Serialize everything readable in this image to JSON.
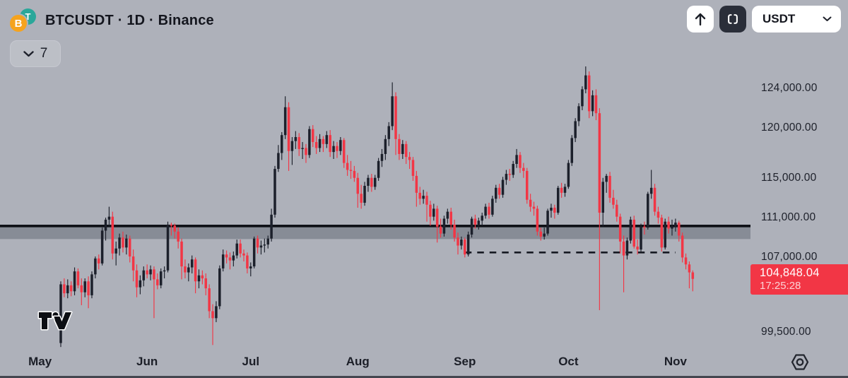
{
  "header": {
    "symbol_title": "BTCUSDT · 1D · Binance",
    "base_coin_letter": "B",
    "quote_coin_letter": "T",
    "legend_collapsed_count": "7"
  },
  "toolbar": {
    "quote_currency": "USDT"
  },
  "price_axis": {
    "ticks": [
      {
        "value": 124000,
        "label": "124,000.00"
      },
      {
        "value": 120000,
        "label": "120,000.00"
      },
      {
        "value": 115000,
        "label": "115,000.00"
      },
      {
        "value": 111000,
        "label": "111,000.00"
      },
      {
        "value": 107000,
        "label": "107,000.00"
      },
      {
        "value": 99500,
        "label": "99,500.00"
      }
    ],
    "last_price": {
      "value": 104848.04,
      "label": "104,848.04",
      "countdown": "17:25:28",
      "color": "#f23645"
    }
  },
  "x_axis": {
    "months": [
      {
        "label": "May",
        "day_index": -6
      },
      {
        "label": "Jun",
        "day_index": 25
      },
      {
        "label": "Jul",
        "day_index": 55
      },
      {
        "label": "Aug",
        "day_index": 86
      },
      {
        "label": "Sep",
        "day_index": 117
      },
      {
        "label": "Oct",
        "day_index": 147
      },
      {
        "label": "Nov",
        "day_index": 178
      }
    ]
  },
  "chart_data": {
    "type": "candlestick",
    "symbol": "BTCUSDT",
    "interval": "1D",
    "exchange": "Binance",
    "title": "BTCUSDT · 1D · Binance",
    "ylim": [
      94900,
      132900
    ],
    "grid": false,
    "up_color": "#1c202b",
    "down_color": "#f23645",
    "zone": {
      "top": 110150,
      "bottom": 108850,
      "line_color": "#0d0f15",
      "fill_color": "rgba(82,87,99,0.42)"
    },
    "dashed_line": {
      "price": 107500,
      "start_day": 117,
      "end_day": 178,
      "color": "#161922"
    },
    "last_price_line_value": 104848.04,
    "candles_format": [
      "open",
      "high",
      "low",
      "close"
    ],
    "candles": [
      [
        98400,
        104600,
        98000,
        104300
      ],
      [
        104300,
        104900,
        103000,
        103400
      ],
      [
        103400,
        104800,
        102900,
        104200
      ],
      [
        104200,
        104600,
        103100,
        103600
      ],
      [
        103600,
        106000,
        103200,
        105600
      ],
      [
        105600,
        105900,
        103900,
        104200
      ],
      [
        104200,
        104900,
        102200,
        103500
      ],
      [
        103500,
        104900,
        103000,
        104600
      ],
      [
        104600,
        105100,
        101900,
        103200
      ],
      [
        103200,
        105600,
        102900,
        105300
      ],
      [
        105300,
        107100,
        104900,
        106900
      ],
      [
        106900,
        107300,
        105800,
        106400
      ],
      [
        106400,
        110000,
        106200,
        109700
      ],
      [
        109700,
        111000,
        108700,
        110800
      ],
      [
        110800,
        112100,
        110100,
        111100
      ],
      [
        111100,
        111600,
        106800,
        107400
      ],
      [
        107400,
        108600,
        106200,
        107900
      ],
      [
        107900,
        109400,
        107200,
        109000
      ],
      [
        109000,
        109600,
        107500,
        108000
      ],
      [
        108000,
        109300,
        107300,
        108900
      ],
      [
        108900,
        109200,
        106500,
        107100
      ],
      [
        107100,
        107800,
        104600,
        105700
      ],
      [
        105700,
        106300,
        103000,
        104000
      ],
      [
        104000,
        105200,
        103300,
        104700
      ],
      [
        104700,
        106100,
        104100,
        105700
      ],
      [
        105700,
        106300,
        104900,
        105300
      ],
      [
        105300,
        106200,
        104700,
        105800
      ],
      [
        105800,
        106100,
        100900,
        104800
      ],
      [
        104800,
        105400,
        103800,
        104200
      ],
      [
        104200,
        105900,
        103900,
        105600
      ],
      [
        105600,
        106100,
        104900,
        105700
      ],
      [
        105700,
        110600,
        105500,
        110300
      ],
      [
        110300,
        110500,
        109200,
        110200
      ],
      [
        110200,
        110400,
        108900,
        109600
      ],
      [
        109600,
        110000,
        107900,
        108600
      ],
      [
        108600,
        108900,
        104800,
        106100
      ],
      [
        106100,
        106800,
        104900,
        105500
      ],
      [
        105500,
        106400,
        104600,
        106000
      ],
      [
        106000,
        107200,
        105400,
        106800
      ],
      [
        106800,
        107000,
        103400,
        104600
      ],
      [
        104600,
        105800,
        103900,
        105200
      ],
      [
        105200,
        105700,
        104300,
        104900
      ],
      [
        104900,
        105400,
        103200,
        103900
      ],
      [
        103900,
        104300,
        100900,
        101600
      ],
      [
        101600,
        102300,
        98200,
        100900
      ],
      [
        100900,
        102600,
        100500,
        102100
      ],
      [
        102100,
        106200,
        101800,
        105900
      ],
      [
        105900,
        107800,
        105600,
        107300
      ],
      [
        107300,
        107700,
        106400,
        107000
      ],
      [
        107000,
        107500,
        105800,
        106700
      ],
      [
        106700,
        107600,
        106100,
        107200
      ],
      [
        107200,
        108800,
        106900,
        108400
      ],
      [
        108400,
        108800,
        107000,
        107400
      ],
      [
        107400,
        107800,
        106600,
        107200
      ],
      [
        107200,
        107500,
        105400,
        105900
      ],
      [
        105900,
        106500,
        105100,
        106100
      ],
      [
        106100,
        109100,
        105900,
        108900
      ],
      [
        108900,
        109200,
        107400,
        108000
      ],
      [
        108000,
        108700,
        107300,
        108200
      ],
      [
        108200,
        108900,
        107500,
        108300
      ],
      [
        108300,
        109200,
        107900,
        108900
      ],
      [
        108900,
        111900,
        108600,
        111300
      ],
      [
        111300,
        116200,
        111000,
        115900
      ],
      [
        115900,
        118300,
        115600,
        117500
      ],
      [
        117500,
        119600,
        116800,
        119300
      ],
      [
        119300,
        123200,
        118900,
        122100
      ],
      [
        122100,
        122600,
        115700,
        117700
      ],
      [
        117700,
        119100,
        116300,
        118700
      ],
      [
        118700,
        119700,
        117900,
        119100
      ],
      [
        119100,
        119500,
        117200,
        117900
      ],
      [
        117900,
        118600,
        116900,
        118000
      ],
      [
        118000,
        118400,
        116500,
        117300
      ],
      [
        117300,
        120200,
        117000,
        119900
      ],
      [
        119900,
        120300,
        118100,
        118600
      ],
      [
        118600,
        119200,
        117400,
        118000
      ],
      [
        118000,
        119400,
        117600,
        118900
      ],
      [
        118900,
        119200,
        117600,
        118400
      ],
      [
        118400,
        119700,
        118000,
        119300
      ],
      [
        119300,
        119800,
        117100,
        117600
      ],
      [
        117600,
        118700,
        116900,
        118200
      ],
      [
        118200,
        118600,
        117000,
        117700
      ],
      [
        117700,
        119100,
        117300,
        118800
      ],
      [
        118800,
        119000,
        116000,
        116500
      ],
      [
        116500,
        117300,
        115200,
        115800
      ],
      [
        115800,
        116700,
        114900,
        115700
      ],
      [
        115700,
        116200,
        114600,
        115000
      ],
      [
        115000,
        115500,
        112000,
        113400
      ],
      [
        113400,
        114300,
        111900,
        112500
      ],
      [
        112500,
        114600,
        112200,
        114200
      ],
      [
        114200,
        115300,
        113600,
        115000
      ],
      [
        115000,
        115400,
        113600,
        114100
      ],
      [
        114100,
        115300,
        113800,
        115000
      ],
      [
        115000,
        117000,
        114700,
        116700
      ],
      [
        116700,
        117900,
        116100,
        117400
      ],
      [
        117400,
        119300,
        116800,
        118900
      ],
      [
        118900,
        120600,
        118200,
        120200
      ],
      [
        120200,
        124600,
        119800,
        123200
      ],
      [
        123200,
        123600,
        117300,
        118900
      ],
      [
        118900,
        119400,
        116800,
        117400
      ],
      [
        117400,
        118800,
        116900,
        118400
      ],
      [
        118400,
        118700,
        116400,
        117100
      ],
      [
        117100,
        117600,
        115900,
        116800
      ],
      [
        116800,
        117100,
        114700,
        115200
      ],
      [
        115200,
        115700,
        112100,
        113500
      ],
      [
        113500,
        114100,
        112300,
        112900
      ],
      [
        112900,
        113800,
        112400,
        113200
      ],
      [
        113200,
        113600,
        110600,
        112300
      ],
      [
        112300,
        112700,
        110200,
        111100
      ],
      [
        111100,
        112400,
        110700,
        111900
      ],
      [
        111900,
        112200,
        108500,
        110100
      ],
      [
        110100,
        110900,
        109000,
        109400
      ],
      [
        109400,
        111200,
        109100,
        110900
      ],
      [
        110900,
        111900,
        110400,
        111600
      ],
      [
        111600,
        112000,
        109800,
        110300
      ],
      [
        110300,
        110800,
        108600,
        109000
      ],
      [
        109000,
        109500,
        107300,
        108200
      ],
      [
        108200,
        109100,
        107800,
        108800
      ],
      [
        108800,
        109000,
        107000,
        107300
      ],
      [
        107300,
        109600,
        107100,
        109300
      ],
      [
        109300,
        111100,
        109000,
        110900
      ],
      [
        110900,
        111300,
        109900,
        110300
      ],
      [
        110300,
        111000,
        109800,
        110700
      ],
      [
        110700,
        111500,
        110200,
        111200
      ],
      [
        111200,
        112400,
        110900,
        112100
      ],
      [
        112100,
        112500,
        110900,
        111300
      ],
      [
        111300,
        113200,
        111100,
        112900
      ],
      [
        112900,
        114300,
        112500,
        114000
      ],
      [
        114000,
        114400,
        112900,
        113300
      ],
      [
        113300,
        115100,
        113000,
        114800
      ],
      [
        114800,
        115800,
        114300,
        115400
      ],
      [
        115400,
        115900,
        114700,
        115300
      ],
      [
        115300,
        116700,
        115000,
        116400
      ],
      [
        116400,
        117900,
        116000,
        117300
      ],
      [
        117300,
        117600,
        115500,
        116000
      ],
      [
        116000,
        116500,
        115000,
        115700
      ],
      [
        115700,
        116000,
        112400,
        112800
      ],
      [
        112800,
        113400,
        111600,
        112100
      ],
      [
        112100,
        112600,
        111200,
        111900
      ],
      [
        111900,
        112200,
        109200,
        109600
      ],
      [
        109600,
        110000,
        108700,
        109100
      ],
      [
        109100,
        110000,
        108800,
        109400
      ],
      [
        109400,
        111900,
        109200,
        111700
      ],
      [
        111700,
        112400,
        111000,
        112000
      ],
      [
        112000,
        112300,
        110900,
        111500
      ],
      [
        111500,
        114200,
        111300,
        114000
      ],
      [
        114000,
        114500,
        113000,
        113500
      ],
      [
        113500,
        114400,
        113100,
        114100
      ],
      [
        114100,
        116800,
        113900,
        116500
      ],
      [
        116500,
        119300,
        116200,
        119000
      ],
      [
        119000,
        121000,
        118600,
        120700
      ],
      [
        120700,
        122500,
        120200,
        122200
      ],
      [
        122200,
        124200,
        121800,
        123900
      ],
      [
        123900,
        126200,
        123500,
        125300
      ],
      [
        125300,
        125700,
        121000,
        121700
      ],
      [
        121700,
        123800,
        121200,
        123300
      ],
      [
        123300,
        123900,
        120800,
        121500
      ],
      [
        121500,
        122000,
        101700,
        111500
      ],
      [
        111500,
        115000,
        110100,
        114600
      ],
      [
        114600,
        115400,
        113500,
        115200
      ],
      [
        115200,
        115600,
        112500,
        113000
      ],
      [
        113000,
        113800,
        111900,
        112300
      ],
      [
        112300,
        112800,
        110600,
        111100
      ],
      [
        111100,
        111400,
        107400,
        108600
      ],
      [
        108600,
        109200,
        103500,
        107200
      ],
      [
        107200,
        109000,
        106800,
        108700
      ],
      [
        108700,
        111100,
        108400,
        110800
      ],
      [
        110800,
        111200,
        107900,
        108100
      ],
      [
        108100,
        108800,
        107300,
        107800
      ],
      [
        107800,
        110400,
        107600,
        110100
      ],
      [
        110100,
        110600,
        109300,
        110000
      ],
      [
        110000,
        113600,
        109800,
        113400
      ],
      [
        113400,
        115800,
        112900,
        114000
      ],
      [
        114000,
        114400,
        111200,
        111600
      ],
      [
        111600,
        112100,
        110400,
        111000
      ],
      [
        111000,
        111300,
        107600,
        108000
      ],
      [
        108000,
        110900,
        107800,
        110600
      ],
      [
        110600,
        111100,
        109400,
        109900
      ],
      [
        109900,
        110800,
        109200,
        110100
      ],
      [
        110100,
        110900,
        109600,
        110500
      ],
      [
        110500,
        110700,
        108600,
        109200
      ],
      [
        109200,
        109500,
        106500,
        107000
      ],
      [
        107000,
        107400,
        105800,
        106300
      ],
      [
        106300,
        106600,
        103900,
        105500
      ],
      [
        105500,
        105700,
        103600,
        104848.04
      ]
    ]
  },
  "footer": {
    "logo": "tradingview-logo",
    "settings_icon": "gear"
  }
}
